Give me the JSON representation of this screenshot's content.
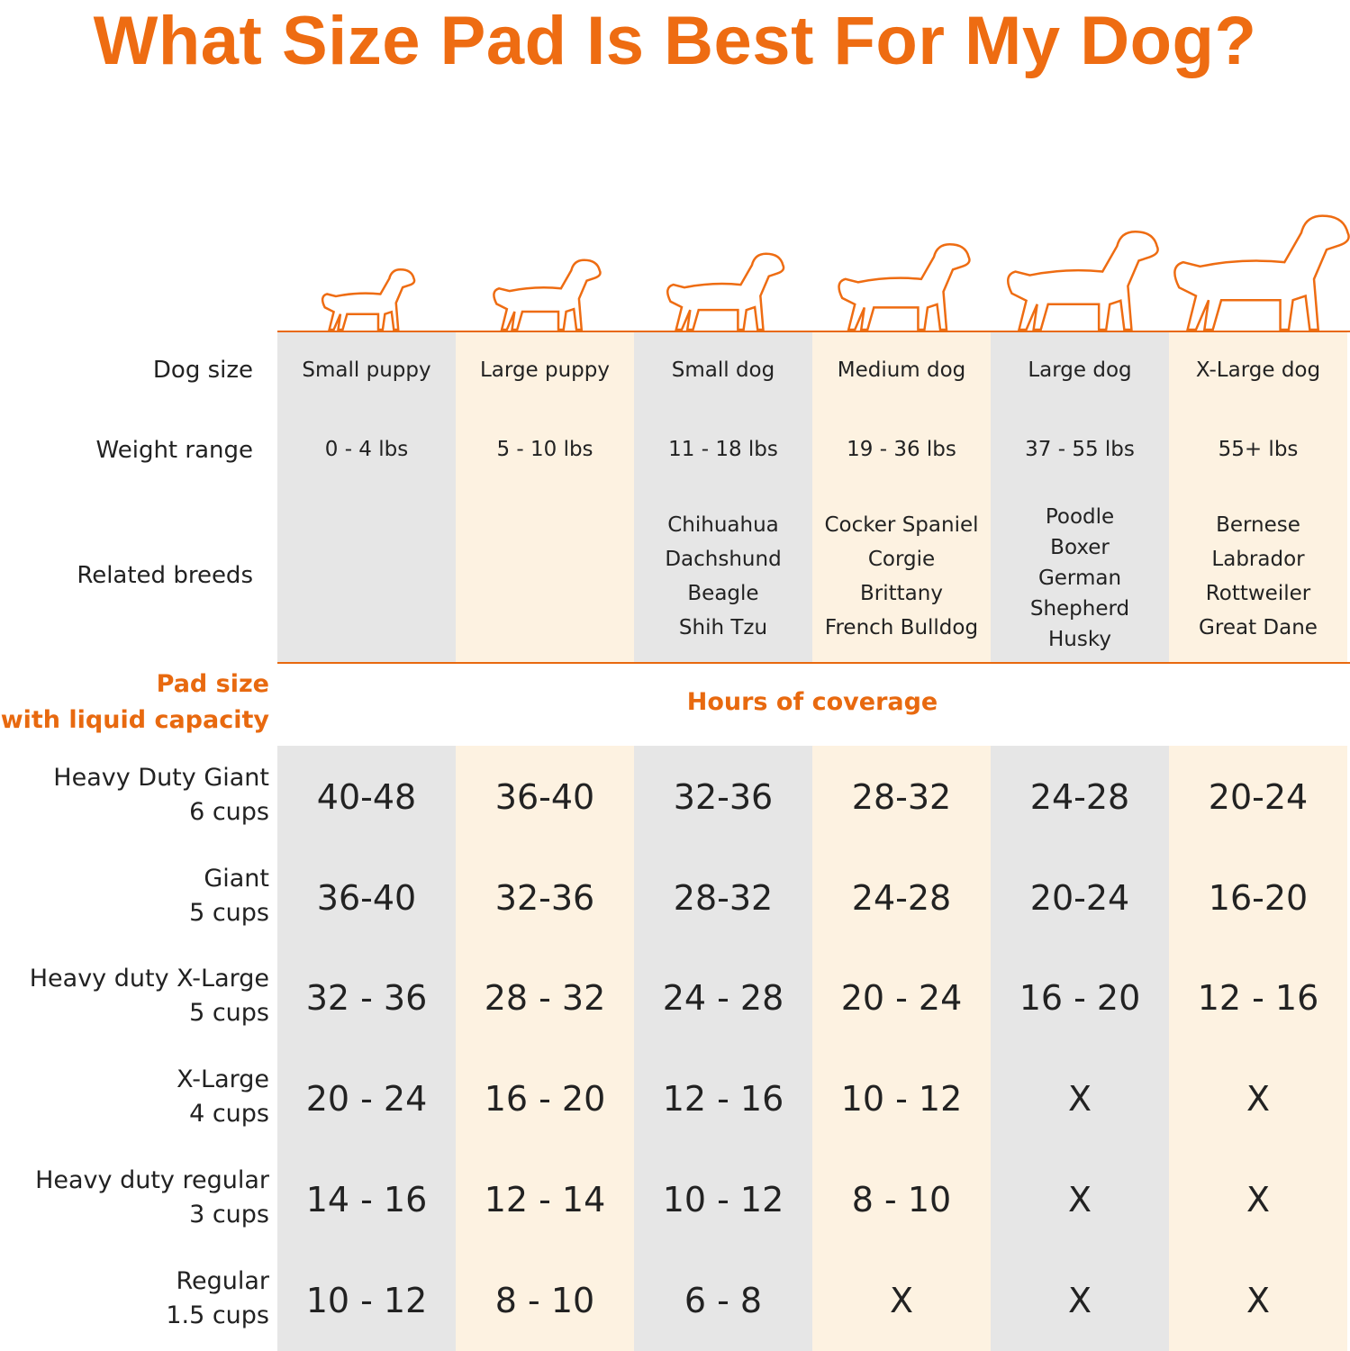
{
  "title": "What Size Pad Is Best For My Dog?",
  "row_labels": [
    "Dog size",
    "Weight range",
    "Related breeds"
  ],
  "columns": [
    {
      "size": "Small puppy",
      "weight": "0 - 4 lbs",
      "breeds": []
    },
    {
      "size": "Large puppy",
      "weight": "5 - 10 lbs",
      "breeds": []
    },
    {
      "size": "Small dog",
      "weight": "11 - 18 lbs",
      "breeds": [
        "Chihuahua",
        "Dachshund",
        "Beagle",
        "Shih Tzu"
      ]
    },
    {
      "size": "Medium dog",
      "weight": "19 - 36 lbs",
      "breeds": [
        "Cocker Spaniel",
        "Corgie",
        "Brittany",
        "French Bulldog"
      ]
    },
    {
      "size": "Large dog",
      "weight": "37 - 55 lbs",
      "breeds": [
        "Poodle",
        "Boxer",
        "German",
        "Shepherd",
        "Husky"
      ]
    },
    {
      "size": "X-Large dog",
      "weight": "55+ lbs",
      "breeds": [
        "Bernese",
        "Labrador",
        "Rottweiler",
        "Great Dane"
      ]
    }
  ],
  "pad_label": [
    "Pad size",
    "with liquid capacity"
  ],
  "coverage_label": "Hours of coverage",
  "pads": [
    {
      "name": "Heavy Duty Giant",
      "capacity": "6 cups",
      "values": [
        "40-48",
        "36-40",
        "32-36",
        "28-32",
        "24-28",
        "20-24"
      ]
    },
    {
      "name": "Giant",
      "capacity": "5 cups",
      "values": [
        "36-40",
        "32-36",
        "28-32",
        "24-28",
        "20-24",
        "16-20"
      ]
    },
    {
      "name": "Heavy duty X-Large",
      "capacity": "5 cups",
      "values": [
        "32 - 36",
        "28 - 32",
        "24 - 28",
        "20 - 24",
        "16 - 20",
        "12 - 16"
      ]
    },
    {
      "name": "X-Large",
      "capacity": "4 cups",
      "values": [
        "20 - 24",
        "16 - 20",
        "12 - 16",
        "10 - 12",
        "X",
        "X"
      ]
    },
    {
      "name": "Heavy duty regular",
      "capacity": "3 cups",
      "values": [
        "14 - 16",
        "12 - 14",
        "10 - 12",
        "8 - 10",
        "X",
        "X"
      ]
    },
    {
      "name": "Regular",
      "capacity": "1.5 cups",
      "values": [
        "10 - 12",
        "8 - 10",
        "6 - 8",
        "X",
        "X",
        "X"
      ]
    }
  ]
}
